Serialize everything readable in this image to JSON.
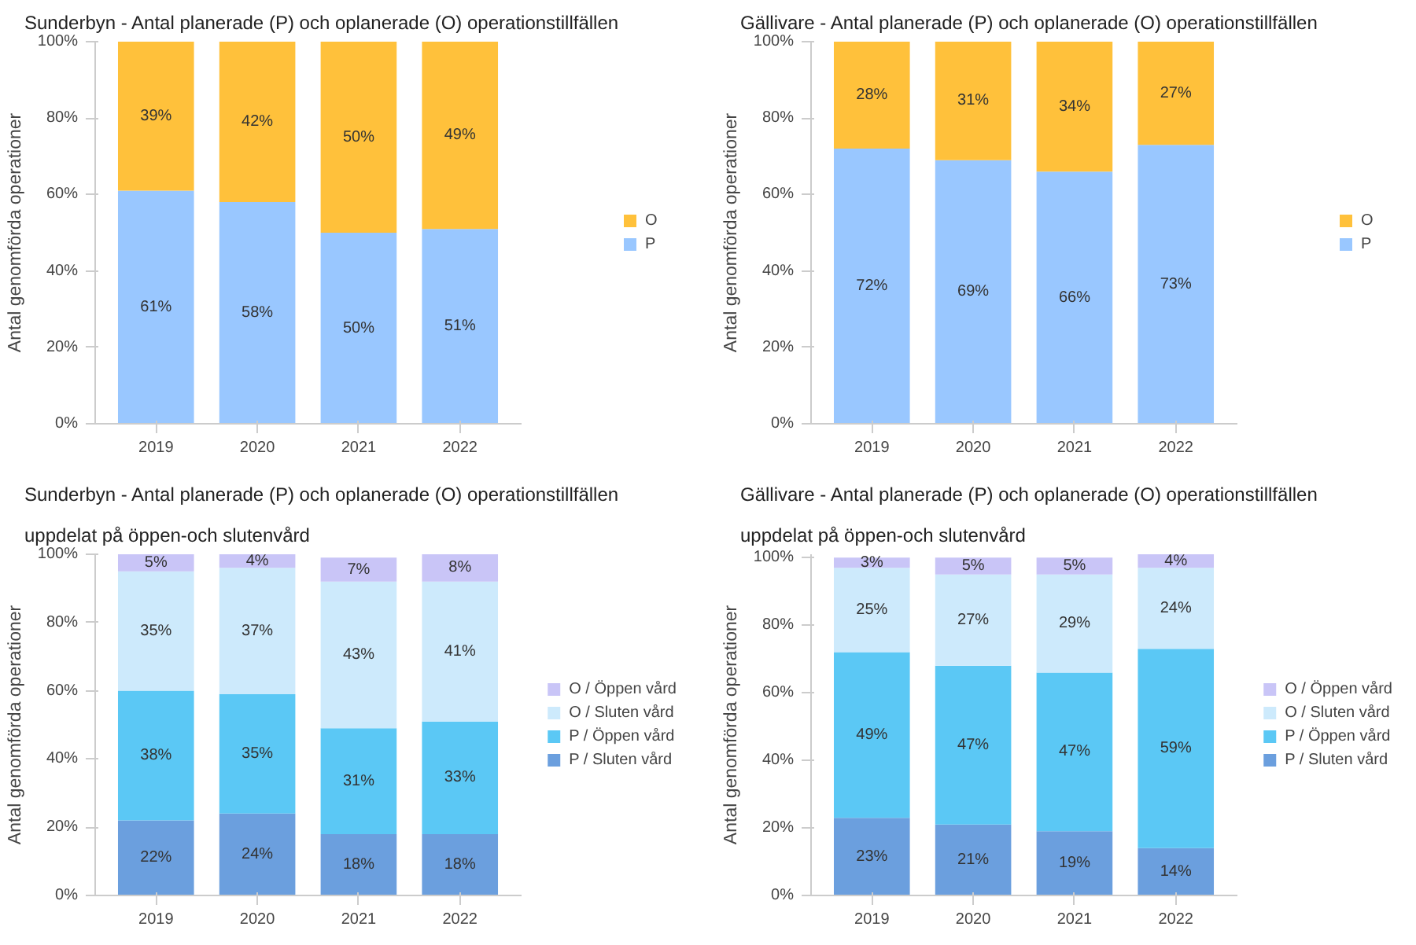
{
  "chart_data": [
    {
      "type": "bar",
      "stacked": true,
      "title": "Sunderbyn - Antal planerade (P) och oplanerade (O) operationstillfällen",
      "ylabel": "Antal genomförda operationer",
      "categories": [
        "2019",
        "2020",
        "2021",
        "2022"
      ],
      "ylim": [
        0,
        100
      ],
      "yticks": [
        {
          "value": 0,
          "label": "0%"
        },
        {
          "value": 20,
          "label": "20%"
        },
        {
          "value": 40,
          "label": "40%"
        },
        {
          "value": 60,
          "label": "60%"
        },
        {
          "value": 80,
          "label": "80%"
        },
        {
          "value": 100,
          "label": "100%"
        }
      ],
      "legend": "right",
      "series": [
        {
          "name": "P",
          "color": "#99c7ff",
          "values": [
            61,
            58,
            50,
            51
          ],
          "value_labels": [
            "61%",
            "58%",
            "50%",
            "51%"
          ]
        },
        {
          "name": "O",
          "color": "#ffc13b",
          "values": [
            39,
            42,
            50,
            49
          ],
          "value_labels": [
            "39%",
            "42%",
            "50%",
            "49%"
          ]
        }
      ]
    },
    {
      "type": "bar",
      "stacked": true,
      "title": "Gällivare - Antal planerade (P) och oplanerade (O) operationstillfällen",
      "ylabel": "Antal genomförda operationer",
      "categories": [
        "2019",
        "2020",
        "2021",
        "2022"
      ],
      "ylim": [
        0,
        100
      ],
      "yticks": [
        {
          "value": 0,
          "label": "0%"
        },
        {
          "value": 20,
          "label": "20%"
        },
        {
          "value": 40,
          "label": "40%"
        },
        {
          "value": 60,
          "label": "60%"
        },
        {
          "value": 80,
          "label": "80%"
        },
        {
          "value": 100,
          "label": "100%"
        }
      ],
      "legend": "right",
      "series": [
        {
          "name": "P",
          "color": "#99c7ff",
          "values": [
            72,
            69,
            66,
            73
          ],
          "value_labels": [
            "72%",
            "69%",
            "66%",
            "73%"
          ]
        },
        {
          "name": "O",
          "color": "#ffc13b",
          "values": [
            28,
            31,
            34,
            27
          ],
          "value_labels": [
            "28%",
            "31%",
            "34%",
            "27%"
          ]
        }
      ]
    },
    {
      "type": "bar",
      "stacked": true,
      "title": "Sunderbyn - Antal planerade (P) och oplanerade (O) operationstillfällen",
      "subtitle": "uppdelat på öppen-och slutenvård",
      "ylabel": "Antal genomförda operationer",
      "categories": [
        "2019",
        "2020",
        "2021",
        "2022"
      ],
      "ylim": [
        0,
        100
      ],
      "yticks": [
        {
          "value": 0,
          "label": "0%"
        },
        {
          "value": 20,
          "label": "20%"
        },
        {
          "value": 40,
          "label": "40%"
        },
        {
          "value": 60,
          "label": "60%"
        },
        {
          "value": 80,
          "label": "80%"
        },
        {
          "value": 100,
          "label": "100%"
        }
      ],
      "legend": "right",
      "series": [
        {
          "name": "P / Sluten vård",
          "color": "#6b9fde",
          "values": [
            22,
            24,
            18,
            18
          ],
          "value_labels": [
            "22%",
            "24%",
            "18%",
            "18%"
          ]
        },
        {
          "name": "P / Öppen vård",
          "color": "#5bc8f5",
          "values": [
            38,
            35,
            31,
            33
          ],
          "value_labels": [
            "38%",
            "35%",
            "31%",
            "33%"
          ]
        },
        {
          "name": "O / Sluten vård",
          "color": "#cdeafc",
          "values": [
            35,
            37,
            43,
            41
          ],
          "value_labels": [
            "35%",
            "37%",
            "43%",
            "41%"
          ]
        },
        {
          "name": "O / Öppen vård",
          "color": "#c9c5f7",
          "values": [
            5,
            4,
            7,
            8
          ],
          "value_labels": [
            "5%",
            "4%",
            "7%",
            "8%"
          ]
        }
      ]
    },
    {
      "type": "bar",
      "stacked": true,
      "title": "Gällivare - Antal planerade (P) och oplanerade (O) operationstillfällen",
      "subtitle": "uppdelat på öppen-och slutenvård",
      "ylabel": "Antal genomförda operationer",
      "categories": [
        "2019",
        "2020",
        "2021",
        "2022"
      ],
      "ylim": [
        0,
        101
      ],
      "yticks": [
        {
          "value": 0,
          "label": "0%"
        },
        {
          "value": 20,
          "label": "20%"
        },
        {
          "value": 40,
          "label": "40%"
        },
        {
          "value": 60,
          "label": "60%"
        },
        {
          "value": 80,
          "label": "80%"
        },
        {
          "value": 100,
          "label": "100%"
        }
      ],
      "legend": "right",
      "series": [
        {
          "name": "P / Sluten vård",
          "color": "#6b9fde",
          "values": [
            23,
            21,
            19,
            14
          ],
          "value_labels": [
            "23%",
            "21%",
            "19%",
            "14%"
          ]
        },
        {
          "name": "P / Öppen vård",
          "color": "#5bc8f5",
          "values": [
            49,
            47,
            47,
            59
          ],
          "value_labels": [
            "49%",
            "47%",
            "47%",
            "59%"
          ]
        },
        {
          "name": "O / Sluten vård",
          "color": "#cdeafc",
          "values": [
            25,
            27,
            29,
            24
          ],
          "value_labels": [
            "25%",
            "27%",
            "29%",
            "24%"
          ]
        },
        {
          "name": "O / Öppen vård",
          "color": "#c9c5f7",
          "values": [
            3,
            5,
            5,
            4
          ],
          "value_labels": [
            "3%",
            "5%",
            "5%",
            "4%"
          ]
        }
      ]
    }
  ]
}
